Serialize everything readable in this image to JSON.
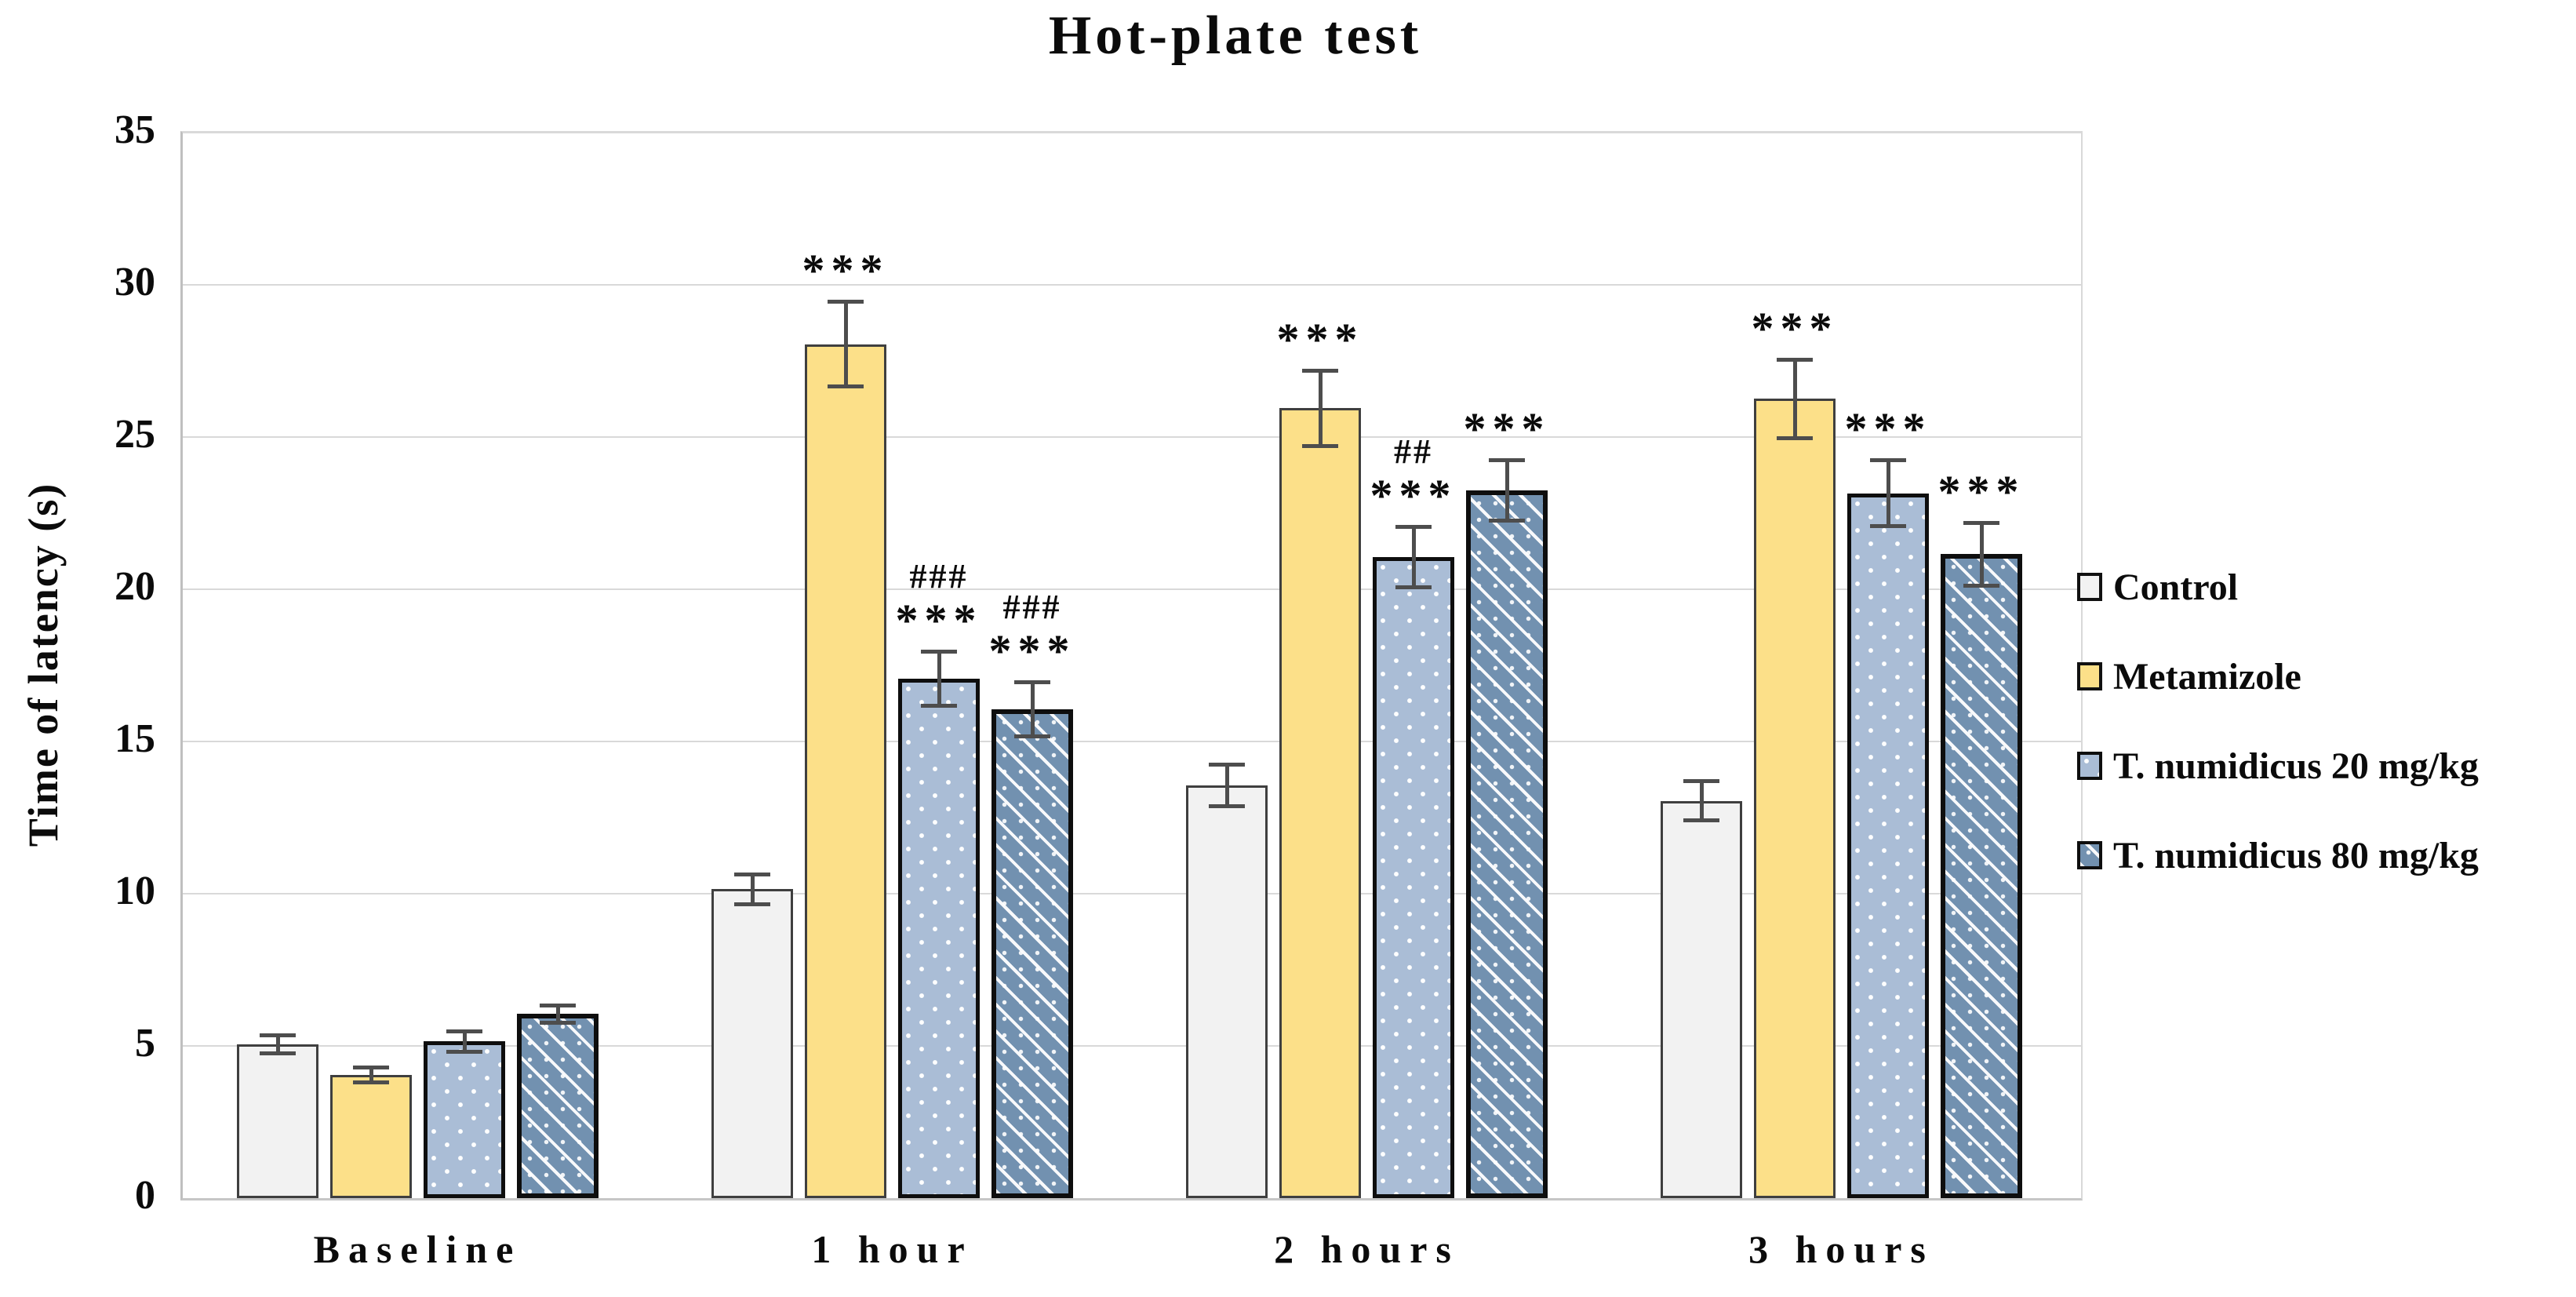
{
  "chart_data": {
    "type": "bar",
    "title": "Hot-plate test",
    "ylabel": "Time of latency (s)",
    "xlabel": "",
    "ylim": [
      0,
      35
    ],
    "yticks": [
      0,
      5,
      10,
      15,
      20,
      25,
      30,
      35
    ],
    "grid": true,
    "legend_position": "right",
    "categories": [
      "Baseline",
      "1 hour",
      "2 hours",
      "3 hours"
    ],
    "series": [
      {
        "name": "Control",
        "fill": "#f2f2f2",
        "border": "#3f3f3f",
        "pattern": "plain-control",
        "values": [
          5.0,
          10.1,
          13.5,
          13.0
        ],
        "errors": [
          0.3,
          0.5,
          0.7,
          0.65
        ],
        "annotations": [
          [],
          [],
          [],
          []
        ]
      },
      {
        "name": "Metamizole",
        "fill": "#fce089",
        "border": "#3f3f3f",
        "pattern": "plain-yellow",
        "values": [
          4.0,
          28.0,
          25.9,
          26.2
        ],
        "errors": [
          0.25,
          1.4,
          1.25,
          1.3
        ],
        "annotations": [
          [],
          [
            "***"
          ],
          [
            "***"
          ],
          [
            "***"
          ]
        ]
      },
      {
        "name": "T. numidicus 20 mg/kg",
        "fill": "#aabdd6",
        "border": "#0e0e0e",
        "pattern": "dots",
        "values": [
          5.1,
          17.0,
          21.0,
          23.1
        ],
        "errors": [
          0.35,
          0.9,
          1.0,
          1.1
        ],
        "annotations": [
          [],
          [
            "###",
            "***"
          ],
          [
            "##",
            "***"
          ],
          [
            "***"
          ]
        ]
      },
      {
        "name": "T. numidicus 80 mg/kg",
        "fill": "#7291b0",
        "border": "#0e0e0e",
        "pattern": "lattice",
        "values": [
          6.0,
          16.0,
          23.2,
          21.1
        ],
        "errors": [
          0.3,
          0.9,
          1.0,
          1.05
        ],
        "annotations": [
          [],
          [
            "###",
            "***"
          ],
          [
            "***"
          ],
          [
            "***"
          ]
        ]
      }
    ],
    "colors": {
      "grid": "#d9d9d9",
      "axis": "#bfbfbf",
      "error_bar": "#4d4d4d",
      "text": "#0b0b0b"
    }
  }
}
